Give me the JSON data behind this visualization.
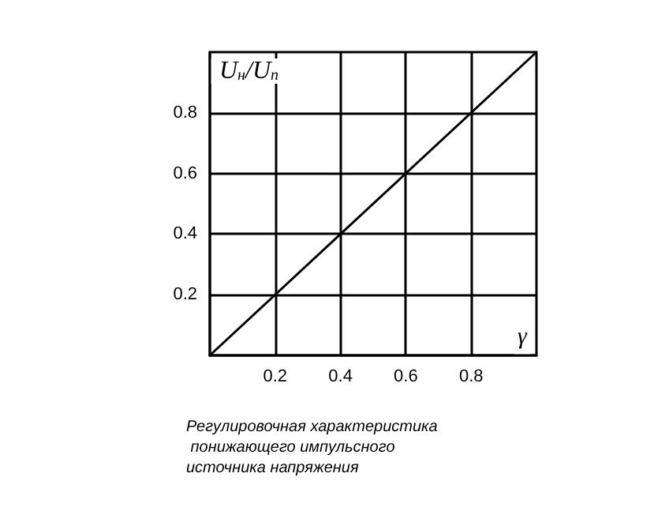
{
  "chart_data": {
    "type": "line",
    "x": [
      0,
      1
    ],
    "series": [
      {
        "color": "#000000",
        "values": [
          0,
          1
        ]
      }
    ],
    "xlim": [
      0,
      1
    ],
    "ylim": [
      0,
      1
    ],
    "xticks": [
      0.2,
      0.4,
      0.6,
      0.8
    ],
    "yticks": [
      0.2,
      0.4,
      0.6,
      0.8
    ],
    "xlabel": "γ",
    "ylabel": "U$_{н}$/U$_{п}$",
    "grid": true,
    "marker": "none",
    "line_style": "solid",
    "annotations": [
      "Регулировочная характеристика понижающего импульсного источника напряжения"
    ]
  }
}
